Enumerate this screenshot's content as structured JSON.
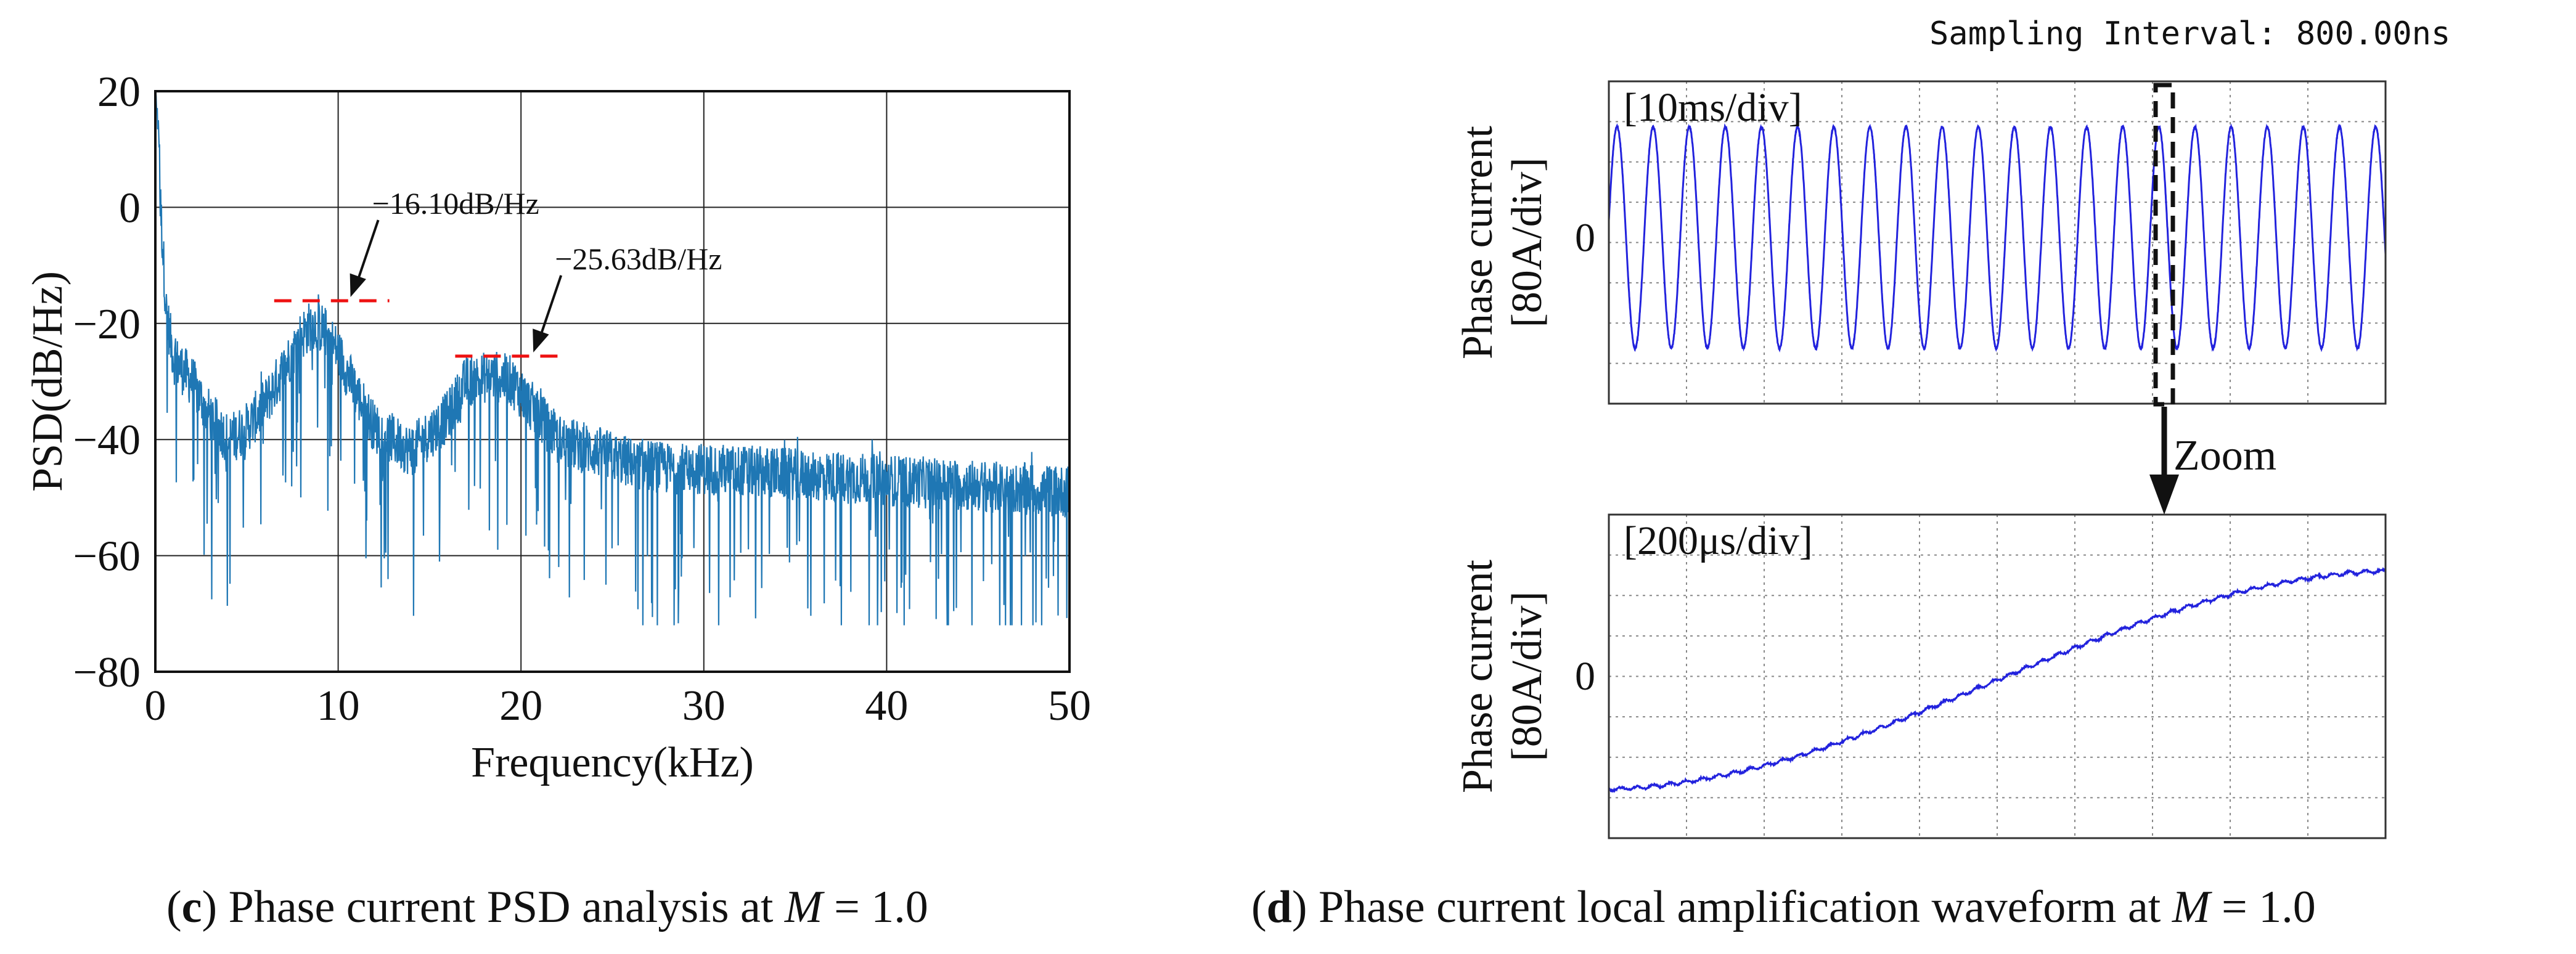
{
  "chart_data": [
    {
      "type": "line",
      "id": "c",
      "title": "",
      "xlabel": "Frequency(kHz)",
      "ylabel": "PSD(dB/Hz)",
      "xlim": [
        0,
        50
      ],
      "ylim": [
        -80,
        20
      ],
      "xticks": [
        0,
        10,
        20,
        30,
        40,
        50
      ],
      "yticks": [
        20,
        0,
        -20,
        -40,
        -60,
        -80
      ],
      "xtick_labels": [
        "0",
        "10",
        "20",
        "30",
        "40",
        "50"
      ],
      "ytick_labels": [
        "20",
        "0",
        "−20",
        "−40",
        "−60",
        "−80"
      ],
      "grid": true,
      "series_color": "#1f77b4",
      "envelope": {
        "description_points_x_khz": [
          0.2,
          0.6,
          1,
          2,
          3,
          4,
          5,
          6,
          7,
          8,
          8.6,
          9.2,
          10,
          11,
          12,
          14,
          16,
          17,
          18.5,
          19.5,
          20.5,
          22,
          24,
          26,
          28,
          30,
          35,
          40,
          45,
          50
        ],
        "mean_psd_db": [
          5,
          -18,
          -26,
          -30,
          -36,
          -40,
          -38,
          -34,
          -28,
          -22,
          -20,
          -21,
          -25,
          -32,
          -38,
          -42,
          -36,
          -30,
          -29,
          -30,
          -34,
          -40,
          -42,
          -44,
          -45,
          -45,
          -46,
          -47,
          -48,
          -49
        ]
      },
      "peaks": [
        {
          "frequency_khz": 10,
          "value_db": -16.1,
          "label": "−16.10dB/Hz",
          "line_from_khz": 6.5,
          "line_to_khz": 12.8
        },
        {
          "frequency_khz": 20,
          "value_db": -25.63,
          "label": "−25.63dB/Hz",
          "line_from_khz": 16.4,
          "line_to_khz": 22.6
        }
      ],
      "caption_letter": "c",
      "caption_text": ") Phase current PSD analysis at ",
      "caption_var": "M",
      "caption_value": " = 1.0"
    },
    {
      "type": "line",
      "id": "d-top",
      "header": "Sampling Interval:  800.00ns",
      "scale_label": "[10ms/div]",
      "ylabel_line1": "Phase current",
      "ylabel_line2": "[80A/div]",
      "zero_label": "0",
      "waveform": "sine",
      "cycles": 21.5,
      "amplitude_div": 2.75,
      "divisions_x": 10,
      "divisions_y": 8,
      "series_color": "#2222dd",
      "zoom_label": "Zoom"
    },
    {
      "type": "line",
      "id": "d-bottom",
      "scale_label": "[200μs/div]",
      "ylabel_line1": "Phase current",
      "ylabel_line2": "[80A/div]",
      "zero_label": "0",
      "waveform": "rising segment",
      "start_div": -2.8,
      "end_div": 2.6,
      "divisions_x": 10,
      "divisions_y": 8,
      "series_color": "#2222dd",
      "caption_letter": "d",
      "caption_text": ") Phase current local amplification waveform at ",
      "caption_var": "M",
      "caption_value": " = 1.0"
    }
  ]
}
